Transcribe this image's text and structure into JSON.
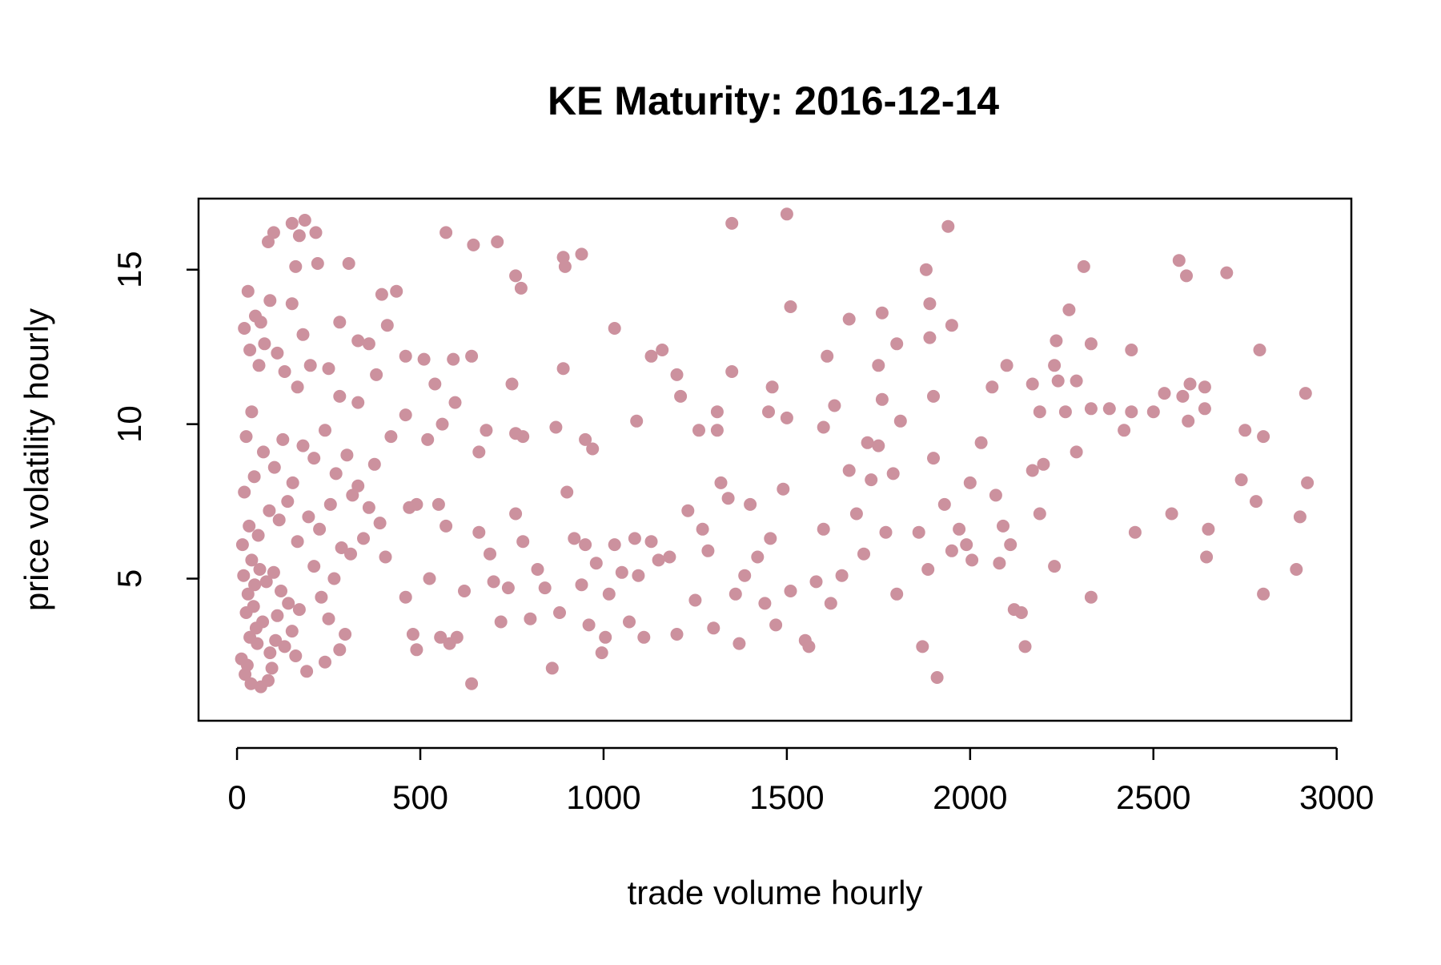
{
  "chart_data": {
    "type": "scatter",
    "title": "KE Maturity: 2016-12-14",
    "xlabel": "trade volume hourly",
    "ylabel": "price volatility hourly",
    "xlim": [
      -105,
      3040
    ],
    "ylim": [
      0.4,
      17.3
    ],
    "x_ticks": [
      "0",
      "500",
      "1000",
      "1500",
      "2000",
      "2500",
      "3000"
    ],
    "y_ticks": [
      "5",
      "10",
      "15"
    ],
    "grid": false,
    "legend": "none",
    "point_color": "#CC919E",
    "points": [
      [
        18,
        5.1
      ],
      [
        25,
        3.9
      ],
      [
        12,
        2.4
      ],
      [
        30,
        4.5
      ],
      [
        40,
        5.6
      ],
      [
        22,
        1.9
      ],
      [
        35,
        3.1
      ],
      [
        48,
        4.8
      ],
      [
        55,
        2.9
      ],
      [
        62,
        5.3
      ],
      [
        70,
        3.6
      ],
      [
        15,
        6.1
      ],
      [
        28,
        2.2
      ],
      [
        45,
        4.1
      ],
      [
        52,
        3.4
      ],
      [
        80,
        4.9
      ],
      [
        90,
        2.6
      ],
      [
        100,
        5.2
      ],
      [
        110,
        3.8
      ],
      [
        120,
        4.6
      ],
      [
        38,
        1.6
      ],
      [
        65,
        1.5
      ],
      [
        85,
        1.7
      ],
      [
        95,
        2.1
      ],
      [
        105,
        3.0
      ],
      [
        130,
        2.8
      ],
      [
        140,
        4.2
      ],
      [
        150,
        3.3
      ],
      [
        160,
        2.5
      ],
      [
        170,
        4.0
      ],
      [
        20,
        7.8
      ],
      [
        33,
        6.7
      ],
      [
        47,
        8.3
      ],
      [
        58,
        6.4
      ],
      [
        72,
        9.1
      ],
      [
        88,
        7.2
      ],
      [
        102,
        8.6
      ],
      [
        115,
        6.9
      ],
      [
        125,
        9.5
      ],
      [
        138,
        7.5
      ],
      [
        152,
        8.1
      ],
      [
        165,
        6.2
      ],
      [
        180,
        9.3
      ],
      [
        195,
        7.0
      ],
      [
        210,
        8.9
      ],
      [
        225,
        6.6
      ],
      [
        240,
        9.8
      ],
      [
        255,
        7.4
      ],
      [
        270,
        8.4
      ],
      [
        285,
        6.0
      ],
      [
        300,
        9.0
      ],
      [
        315,
        7.7
      ],
      [
        330,
        8.0
      ],
      [
        345,
        6.3
      ],
      [
        360,
        7.3
      ],
      [
        375,
        8.7
      ],
      [
        390,
        6.8
      ],
      [
        405,
        5.7
      ],
      [
        420,
        9.6
      ],
      [
        210,
        5.4
      ],
      [
        230,
        4.4
      ],
      [
        250,
        3.7
      ],
      [
        265,
        5.0
      ],
      [
        280,
        2.7
      ],
      [
        295,
        3.2
      ],
      [
        310,
        5.8
      ],
      [
        240,
        2.3
      ],
      [
        190,
        2.0
      ],
      [
        25,
        9.6
      ],
      [
        40,
        10.4
      ],
      [
        60,
        11.9
      ],
      [
        75,
        12.6
      ],
      [
        50,
        13.5
      ],
      [
        30,
        14.3
      ],
      [
        35,
        12.4
      ],
      [
        20,
        13.1
      ],
      [
        65,
        13.3
      ],
      [
        110,
        12.3
      ],
      [
        130,
        11.7
      ],
      [
        150,
        13.9
      ],
      [
        165,
        11.2
      ],
      [
        180,
        12.9
      ],
      [
        200,
        11.9
      ],
      [
        220,
        15.2
      ],
      [
        250,
        11.8
      ],
      [
        280,
        13.3
      ],
      [
        305,
        15.2
      ],
      [
        330,
        12.7
      ],
      [
        360,
        12.6
      ],
      [
        380,
        11.6
      ],
      [
        395,
        14.2
      ],
      [
        410,
        13.2
      ],
      [
        435,
        14.3
      ],
      [
        85,
        15.9
      ],
      [
        100,
        16.2
      ],
      [
        150,
        16.5
      ],
      [
        170,
        16.1
      ],
      [
        185,
        16.6
      ],
      [
        215,
        16.2
      ],
      [
        160,
        15.1
      ],
      [
        90,
        14.0
      ],
      [
        330,
        10.7
      ],
      [
        280,
        10.9
      ],
      [
        460,
        12.2
      ],
      [
        510,
        12.1
      ],
      [
        560,
        10.0
      ],
      [
        590,
        12.1
      ],
      [
        640,
        12.2
      ],
      [
        460,
        10.3
      ],
      [
        520,
        9.5
      ],
      [
        470,
        7.3
      ],
      [
        490,
        7.4
      ],
      [
        550,
        7.4
      ],
      [
        570,
        6.7
      ],
      [
        460,
        4.4
      ],
      [
        480,
        3.2
      ],
      [
        490,
        2.7
      ],
      [
        525,
        5.0
      ],
      [
        555,
        3.1
      ],
      [
        580,
        2.9
      ],
      [
        600,
        3.1
      ],
      [
        620,
        4.6
      ],
      [
        640,
        1.6
      ],
      [
        660,
        6.5
      ],
      [
        690,
        5.8
      ],
      [
        700,
        4.9
      ],
      [
        720,
        3.6
      ],
      [
        740,
        4.7
      ],
      [
        760,
        7.1
      ],
      [
        780,
        6.2
      ],
      [
        800,
        3.7
      ],
      [
        820,
        5.3
      ],
      [
        840,
        4.7
      ],
      [
        860,
        2.1
      ],
      [
        880,
        3.9
      ],
      [
        900,
        7.8
      ],
      [
        920,
        6.3
      ],
      [
        940,
        4.8
      ],
      [
        950,
        6.1
      ],
      [
        960,
        3.5
      ],
      [
        980,
        5.5
      ],
      [
        995,
        2.6
      ],
      [
        1005,
        3.1
      ],
      [
        1015,
        4.5
      ],
      [
        1030,
        6.1
      ],
      [
        1050,
        5.2
      ],
      [
        1070,
        3.6
      ],
      [
        1085,
        6.3
      ],
      [
        1095,
        5.1
      ],
      [
        1110,
        3.1
      ],
      [
        1130,
        6.2
      ],
      [
        1150,
        5.6
      ],
      [
        1180,
        5.7
      ],
      [
        1200,
        3.2
      ],
      [
        1230,
        7.2
      ],
      [
        1250,
        4.3
      ],
      [
        1270,
        6.6
      ],
      [
        1285,
        5.9
      ],
      [
        1300,
        3.4
      ],
      [
        1320,
        8.1
      ],
      [
        1340,
        7.6
      ],
      [
        1360,
        4.5
      ],
      [
        1370,
        2.9
      ],
      [
        1385,
        5.1
      ],
      [
        1400,
        7.4
      ],
      [
        1420,
        5.7
      ],
      [
        1440,
        4.2
      ],
      [
        1455,
        6.3
      ],
      [
        1470,
        3.5
      ],
      [
        1490,
        7.9
      ],
      [
        1510,
        4.6
      ],
      [
        1550,
        3.0
      ],
      [
        1560,
        2.8
      ],
      [
        1580,
        4.9
      ],
      [
        1600,
        6.6
      ],
      [
        1620,
        4.2
      ],
      [
        1650,
        5.1
      ],
      [
        1670,
        8.5
      ],
      [
        1690,
        7.1
      ],
      [
        1710,
        5.8
      ],
      [
        1730,
        8.2
      ],
      [
        1750,
        9.3
      ],
      [
        1770,
        6.5
      ],
      [
        1790,
        8.4
      ],
      [
        1800,
        4.5
      ],
      [
        1860,
        6.5
      ],
      [
        1870,
        2.8
      ],
      [
        1885,
        5.3
      ],
      [
        1900,
        8.9
      ],
      [
        1910,
        1.8
      ],
      [
        1930,
        7.4
      ],
      [
        1950,
        5.9
      ],
      [
        1970,
        6.6
      ],
      [
        1990,
        6.1
      ],
      [
        2005,
        5.6
      ],
      [
        2000,
        8.1
      ],
      [
        2030,
        9.4
      ],
      [
        2070,
        7.7
      ],
      [
        2080,
        5.5
      ],
      [
        2090,
        6.7
      ],
      [
        2110,
        6.1
      ],
      [
        2120,
        4.0
      ],
      [
        2140,
        3.9
      ],
      [
        2150,
        2.8
      ],
      [
        2170,
        8.5
      ],
      [
        2190,
        7.1
      ],
      [
        2200,
        8.7
      ],
      [
        2230,
        5.4
      ],
      [
        2290,
        9.1
      ],
      [
        2330,
        4.4
      ],
      [
        2450,
        6.5
      ],
      [
        2550,
        7.1
      ],
      [
        2645,
        5.7
      ],
      [
        2650,
        6.6
      ],
      [
        2740,
        8.2
      ],
      [
        2780,
        7.5
      ],
      [
        2800,
        4.5
      ],
      [
        2890,
        5.3
      ],
      [
        2900,
        7.0
      ],
      [
        2920,
        8.1
      ],
      [
        2915,
        11.0
      ],
      [
        2790,
        12.4
      ],
      [
        2750,
        9.8
      ],
      [
        2800,
        9.6
      ],
      [
        2600,
        11.3
      ],
      [
        2640,
        11.2
      ],
      [
        2640,
        10.5
      ],
      [
        2580,
        10.9
      ],
      [
        2595,
        10.1
      ],
      [
        2530,
        11.0
      ],
      [
        2500,
        10.4
      ],
      [
        2420,
        9.8
      ],
      [
        2440,
        12.4
      ],
      [
        2440,
        10.4
      ],
      [
        2380,
        10.5
      ],
      [
        2330,
        10.5
      ],
      [
        2330,
        12.6
      ],
      [
        2290,
        11.4
      ],
      [
        2270,
        13.7
      ],
      [
        2260,
        10.4
      ],
      [
        2240,
        11.4
      ],
      [
        2230,
        11.9
      ],
      [
        2235,
        12.7
      ],
      [
        2190,
        10.4
      ],
      [
        2170,
        11.3
      ],
      [
        2100,
        11.9
      ],
      [
        2060,
        11.2
      ],
      [
        1950,
        13.2
      ],
      [
        1890,
        13.9
      ],
      [
        1890,
        12.8
      ],
      [
        1900,
        10.9
      ],
      [
        1800,
        12.6
      ],
      [
        1810,
        10.1
      ],
      [
        1760,
        13.6
      ],
      [
        1750,
        11.9
      ],
      [
        1760,
        10.8
      ],
      [
        1720,
        9.4
      ],
      [
        1670,
        13.4
      ],
      [
        1630,
        10.6
      ],
      [
        1610,
        12.2
      ],
      [
        1600,
        9.9
      ],
      [
        1510,
        13.8
      ],
      [
        1500,
        10.2
      ],
      [
        1460,
        11.2
      ],
      [
        1450,
        10.4
      ],
      [
        1350,
        11.7
      ],
      [
        1310,
        10.4
      ],
      [
        1310,
        9.8
      ],
      [
        1260,
        9.8
      ],
      [
        1210,
        10.9
      ],
      [
        1200,
        11.6
      ],
      [
        1160,
        12.4
      ],
      [
        1130,
        12.2
      ],
      [
        1090,
        10.1
      ],
      [
        1030,
        13.1
      ],
      [
        970,
        9.2
      ],
      [
        950,
        9.5
      ],
      [
        890,
        11.8
      ],
      [
        870,
        9.9
      ],
      [
        780,
        9.6
      ],
      [
        760,
        9.7
      ],
      [
        750,
        11.3
      ],
      [
        680,
        9.8
      ],
      [
        660,
        9.1
      ],
      [
        595,
        10.7
      ],
      [
        540,
        11.3
      ],
      [
        710,
        15.9
      ],
      [
        645,
        15.8
      ],
      [
        570,
        16.2
      ],
      [
        760,
        14.8
      ],
      [
        775,
        14.4
      ],
      [
        890,
        15.4
      ],
      [
        895,
        15.1
      ],
      [
        940,
        15.5
      ],
      [
        1350,
        16.5
      ],
      [
        1500,
        16.8
      ],
      [
        1940,
        16.4
      ],
      [
        1880,
        15.0
      ],
      [
        2310,
        15.1
      ],
      [
        2570,
        15.3
      ],
      [
        2590,
        14.8
      ],
      [
        2700,
        14.9
      ]
    ]
  }
}
